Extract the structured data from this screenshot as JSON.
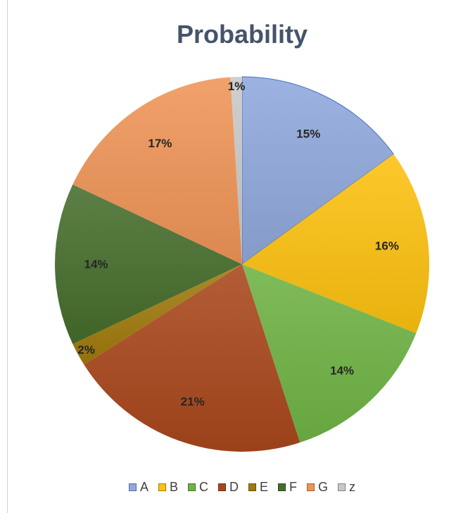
{
  "chart_data": {
    "type": "pie",
    "title": "Probability",
    "categories": [
      "A",
      "B",
      "C",
      "D",
      "E",
      "F",
      "G",
      "z"
    ],
    "values": [
      15,
      16,
      14,
      21,
      2,
      14,
      17,
      1
    ],
    "labels": [
      "15%",
      "16%",
      "14%",
      "21%",
      "2%",
      "14%",
      "17%",
      "1%"
    ],
    "colors": [
      "#8fa8dc",
      "#fcc10f",
      "#6fb344",
      "#a9471c",
      "#a07a0c",
      "#466d2c",
      "#ef9457",
      "#c8c8c8"
    ],
    "legend": "bottom",
    "start": "top, clockwise"
  }
}
